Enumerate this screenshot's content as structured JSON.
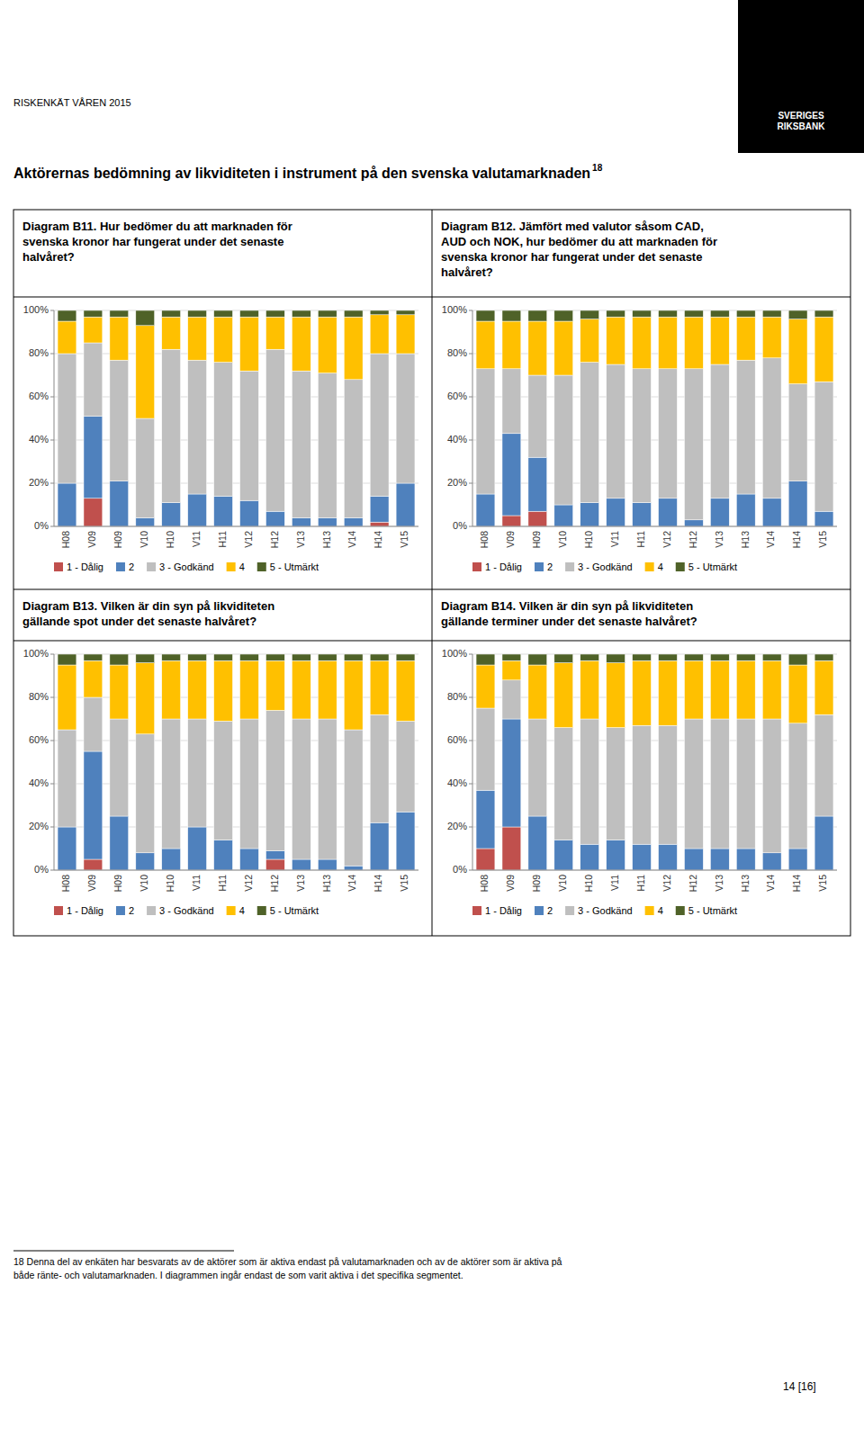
{
  "title": "Aktörernas bedömning av likviditeten i instrument på den svenska valutamarknaden",
  "annotations": [
    "RISKENKÄT VÅREN 2015",
    "SVERIGES\nRIKSBANK",
    "18",
    "18 Denna del av enkäten har besvarats av de aktörer som är aktiva endast på valutamarknaden och av de aktörer som är aktiva på\nbåde ränte- och valutamarknaden. I diagrammen ingår endast de som varit aktiva i det specifika segmentet.",
    "14 [16]"
  ],
  "chart_data": [
    {
      "type": "bar",
      "stacked": true,
      "title": "Diagram B11. Hur bedömer du att marknaden för\nsvenska kronor har fungerat under det senaste\nhalvåret?",
      "categories": [
        "H08",
        "V09",
        "H09",
        "V10",
        "H10",
        "V11",
        "H11",
        "V12",
        "H12",
        "V13",
        "H13",
        "V14",
        "H14",
        "V15"
      ],
      "series": [
        {
          "name": "1 - Dålig",
          "color": "#c0504d",
          "values": [
            0.0,
            0.13,
            0.0,
            0.0,
            0.0,
            0.0,
            0.0,
            0.0,
            0.0,
            0.0,
            0.0,
            0.0,
            0.02,
            0.0
          ]
        },
        {
          "name": "2",
          "color": "#4f81bd",
          "values": [
            0.2,
            0.38,
            0.21,
            0.04,
            0.11,
            0.15,
            0.14,
            0.12,
            0.07,
            0.04,
            0.04,
            0.04,
            0.12,
            0.2
          ]
        },
        {
          "name": "3 - Godkänd",
          "color": "#bfbfbf",
          "values": [
            0.6,
            0.34,
            0.56,
            0.46,
            0.71,
            0.62,
            0.62,
            0.6,
            0.75,
            0.68,
            0.67,
            0.64,
            0.66,
            0.6
          ]
        },
        {
          "name": "4",
          "color": "#ffc000",
          "values": [
            0.15,
            0.12,
            0.2,
            0.43,
            0.15,
            0.2,
            0.21,
            0.25,
            0.15,
            0.25,
            0.26,
            0.29,
            0.18,
            0.18
          ]
        },
        {
          "name": "5 - Utmärkt",
          "color": "#4f6228",
          "values": [
            0.05,
            0.03,
            0.03,
            0.07,
            0.03,
            0.03,
            0.03,
            0.03,
            0.03,
            0.03,
            0.03,
            0.03,
            0.02,
            0.02
          ]
        }
      ],
      "ylim": [
        0,
        1
      ],
      "yticks": [
        {
          "value": 0,
          "label": "0%"
        },
        {
          "value": 0.2,
          "label": "20%"
        },
        {
          "value": 0.4,
          "label": "40%"
        },
        {
          "value": 0.6,
          "label": "60%"
        },
        {
          "value": 0.8,
          "label": "80%"
        },
        {
          "value": 1,
          "label": "100%"
        }
      ],
      "grid": true,
      "legend": "bottom"
    },
    {
      "type": "bar",
      "stacked": true,
      "title": "Diagram B12. Jämfört med valutor såsom CAD,\nAUD och NOK, hur bedömer du att marknaden för\nsvenska kronor har fungerat under det senaste\nhalvåret?",
      "categories": [
        "H08",
        "V09",
        "H09",
        "V10",
        "H10",
        "V11",
        "H11",
        "V12",
        "H12",
        "V13",
        "H13",
        "V14",
        "H14",
        "V15"
      ],
      "series": [
        {
          "name": "1 - Dålig",
          "color": "#c0504d",
          "values": [
            0.0,
            0.05,
            0.07,
            0.0,
            0.0,
            0.0,
            0.0,
            0.0,
            0.0,
            0.0,
            0.0,
            0.0,
            0.0,
            0.0
          ]
        },
        {
          "name": "2",
          "color": "#4f81bd",
          "values": [
            0.15,
            0.38,
            0.25,
            0.1,
            0.11,
            0.13,
            0.11,
            0.13,
            0.03,
            0.13,
            0.15,
            0.13,
            0.21,
            0.07
          ]
        },
        {
          "name": "3 - Godkänd",
          "color": "#bfbfbf",
          "values": [
            0.58,
            0.3,
            0.38,
            0.6,
            0.65,
            0.62,
            0.62,
            0.6,
            0.7,
            0.62,
            0.62,
            0.65,
            0.45,
            0.6
          ]
        },
        {
          "name": "4",
          "color": "#ffc000",
          "values": [
            0.22,
            0.22,
            0.25,
            0.25,
            0.2,
            0.22,
            0.24,
            0.24,
            0.24,
            0.22,
            0.2,
            0.19,
            0.3,
            0.3
          ]
        },
        {
          "name": "5 - Utmärkt",
          "color": "#4f6228",
          "values": [
            0.05,
            0.05,
            0.05,
            0.05,
            0.04,
            0.03,
            0.03,
            0.03,
            0.03,
            0.03,
            0.03,
            0.03,
            0.04,
            0.03
          ]
        }
      ],
      "ylim": [
        0,
        1
      ],
      "yticks": [
        {
          "value": 0,
          "label": "0%"
        },
        {
          "value": 0.2,
          "label": "20%"
        },
        {
          "value": 0.4,
          "label": "40%"
        },
        {
          "value": 0.6,
          "label": "60%"
        },
        {
          "value": 0.8,
          "label": "80%"
        },
        {
          "value": 1,
          "label": "100%"
        }
      ],
      "grid": true,
      "legend": "bottom"
    },
    {
      "type": "bar",
      "stacked": true,
      "title": "Diagram B13. Vilken är din syn på likviditeten\ngällande spot under det senaste halvåret?",
      "categories": [
        "H08",
        "V09",
        "H09",
        "V10",
        "H10",
        "V11",
        "H11",
        "V12",
        "H12",
        "V13",
        "H13",
        "V14",
        "H14",
        "V15"
      ],
      "series": [
        {
          "name": "1 - Dålig",
          "color": "#c0504d",
          "values": [
            0.0,
            0.05,
            0.0,
            0.0,
            0.0,
            0.0,
            0.0,
            0.0,
            0.05,
            0.0,
            0.0,
            0.0,
            0.0,
            0.0
          ]
        },
        {
          "name": "2",
          "color": "#4f81bd",
          "values": [
            0.2,
            0.5,
            0.25,
            0.08,
            0.1,
            0.2,
            0.14,
            0.1,
            0.04,
            0.05,
            0.05,
            0.02,
            0.22,
            0.27
          ]
        },
        {
          "name": "3 - Godkänd",
          "color": "#bfbfbf",
          "values": [
            0.45,
            0.25,
            0.45,
            0.55,
            0.6,
            0.5,
            0.55,
            0.6,
            0.65,
            0.65,
            0.65,
            0.63,
            0.5,
            0.42
          ]
        },
        {
          "name": "4",
          "color": "#ffc000",
          "values": [
            0.3,
            0.17,
            0.25,
            0.33,
            0.27,
            0.27,
            0.28,
            0.27,
            0.23,
            0.27,
            0.27,
            0.32,
            0.25,
            0.28
          ]
        },
        {
          "name": "5 - Utmärkt",
          "color": "#4f6228",
          "values": [
            0.05,
            0.03,
            0.05,
            0.04,
            0.03,
            0.03,
            0.03,
            0.03,
            0.03,
            0.03,
            0.03,
            0.03,
            0.03,
            0.03
          ]
        }
      ],
      "ylim": [
        0,
        1
      ],
      "yticks": [
        {
          "value": 0,
          "label": "0%"
        },
        {
          "value": 0.2,
          "label": "20%"
        },
        {
          "value": 0.4,
          "label": "40%"
        },
        {
          "value": 0.6,
          "label": "60%"
        },
        {
          "value": 0.8,
          "label": "80%"
        },
        {
          "value": 1,
          "label": "100%"
        }
      ],
      "grid": true,
      "legend": "bottom"
    },
    {
      "type": "bar",
      "stacked": true,
      "title": "Diagram B14. Vilken är din syn på likviditeten\ngällande terminer under det senaste halvåret?",
      "categories": [
        "H08",
        "V09",
        "H09",
        "V10",
        "H10",
        "V11",
        "H11",
        "V12",
        "H12",
        "V13",
        "H13",
        "V14",
        "H14",
        "V15"
      ],
      "series": [
        {
          "name": "1 - Dålig",
          "color": "#c0504d",
          "values": [
            0.1,
            0.2,
            0.0,
            0.0,
            0.0,
            0.0,
            0.0,
            0.0,
            0.0,
            0.0,
            0.0,
            0.0,
            0.0,
            0.0
          ]
        },
        {
          "name": "2",
          "color": "#4f81bd",
          "values": [
            0.27,
            0.5,
            0.25,
            0.14,
            0.12,
            0.14,
            0.12,
            0.12,
            0.1,
            0.1,
            0.1,
            0.08,
            0.1,
            0.25
          ]
        },
        {
          "name": "3 - Godkänd",
          "color": "#bfbfbf",
          "values": [
            0.38,
            0.18,
            0.45,
            0.52,
            0.58,
            0.52,
            0.55,
            0.55,
            0.6,
            0.6,
            0.6,
            0.62,
            0.58,
            0.47
          ]
        },
        {
          "name": "4",
          "color": "#ffc000",
          "values": [
            0.2,
            0.09,
            0.25,
            0.3,
            0.27,
            0.3,
            0.3,
            0.3,
            0.27,
            0.27,
            0.27,
            0.27,
            0.27,
            0.25
          ]
        },
        {
          "name": "5 - Utmärkt",
          "color": "#4f6228",
          "values": [
            0.05,
            0.03,
            0.05,
            0.04,
            0.03,
            0.04,
            0.03,
            0.03,
            0.03,
            0.03,
            0.03,
            0.03,
            0.05,
            0.03
          ]
        }
      ],
      "ylim": [
        0,
        1
      ],
      "yticks": [
        {
          "value": 0,
          "label": "0%"
        },
        {
          "value": 0.2,
          "label": "20%"
        },
        {
          "value": 0.4,
          "label": "40%"
        },
        {
          "value": 0.6,
          "label": "60%"
        },
        {
          "value": 0.8,
          "label": "80%"
        },
        {
          "value": 1,
          "label": "100%"
        }
      ],
      "grid": true,
      "legend": "bottom"
    }
  ]
}
